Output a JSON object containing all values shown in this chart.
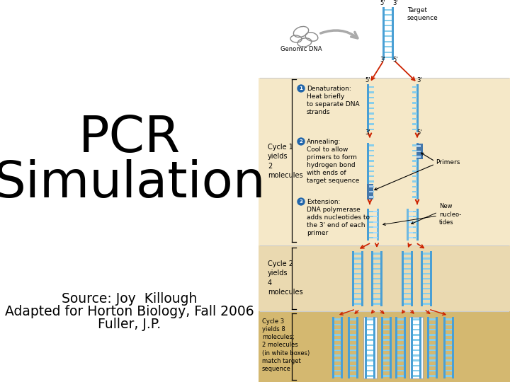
{
  "title_line1": "PCR",
  "title_line2": "Simulation",
  "title_fontsize": 52,
  "source_text_1": "Source: Joy  Killough",
  "source_text_2": "Adapted for Horton Biology, Fall 2006",
  "source_text_3": "Fuller, J.P.",
  "source_fontsize": 13.5,
  "bg_color": "#ffffff",
  "cycle1_bg": "#f5e8c8",
  "cycle2_bg": "#ead9b0",
  "cycle3_bg": "#d4b870",
  "top_bg": "#ffffff",
  "dna_blue": "#4a9fd4",
  "dna_light": "#87ceeb",
  "dna_dark": "#2a7fb0",
  "primer_color": "#5588aa",
  "arrow_red": "#cc2200",
  "text_color": "#000000"
}
